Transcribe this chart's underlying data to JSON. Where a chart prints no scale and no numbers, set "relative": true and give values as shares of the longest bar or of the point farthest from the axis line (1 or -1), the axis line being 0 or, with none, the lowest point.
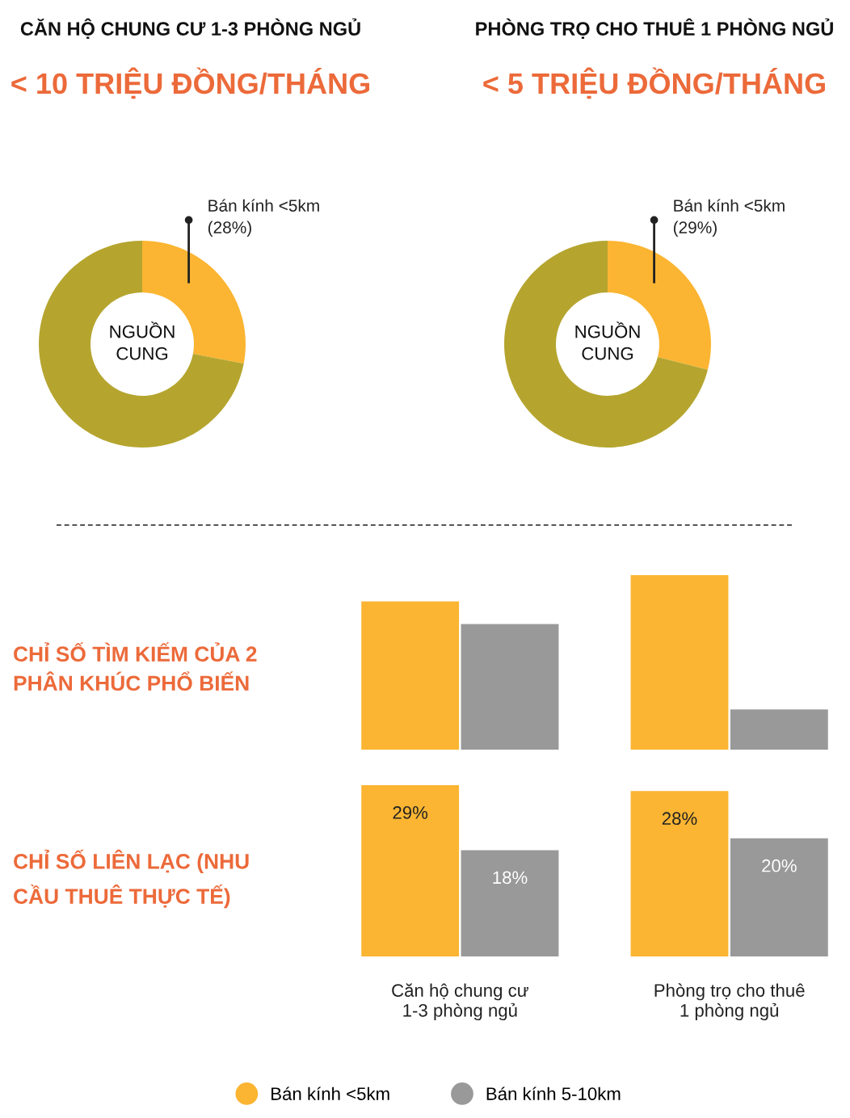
{
  "chart_data": [
    {
      "type": "donut",
      "title": "CĂN HỘ CHUNG CƯ 1-3 PHÒNG NGỦ",
      "subtitle": "< 10 TRIỆU ĐỒNG/THÁNG",
      "categories": [
        "Bán kính <5km",
        null
      ],
      "values": [
        28,
        72
      ],
      "colors": [
        "#fbb532",
        "#b5a52f"
      ],
      "value_labels": [
        "(28%)",
        null
      ],
      "annotations": [
        "NGUỒN\nCUNG"
      ]
    },
    {
      "type": "donut",
      "title": "PHÒNG TRỌ CHO THUÊ 1 PHÒNG NGỦ",
      "subtitle": "< 5 TRIỆU ĐỒNG/THÁNG",
      "categories": [
        "Bán kính <5km",
        null
      ],
      "values": [
        29,
        71
      ],
      "colors": [
        "#fbb532",
        "#b5a52f"
      ],
      "value_labels": [
        "(29%)",
        null
      ],
      "annotations": [
        "NGUỒN\nCUNG"
      ]
    },
    {
      "type": "bar",
      "ylabel": "CHỈ SỐ TÌM KIẾM CỦA 2\nPHÂN KHÚC PHỔ BIẾN",
      "relative": true,
      "categories": [
        null,
        null
      ],
      "legend": "bottom",
      "tick_labels": false,
      "series": [
        {
          "name": "Bán kính <5km",
          "color": "#fbb532",
          "values": [
            0.85,
            1
          ]
        },
        {
          "name": "Bán kính 5-10km",
          "color": "#999999",
          "values": [
            0.72,
            0.23
          ]
        }
      ]
    },
    {
      "type": "bar",
      "ylabel": "CHỈ SỐ LIÊN LẠC (NHU\nCẦU THUÊ THỰC TẾ)",
      "categories": [
        "Căn hộ chung cư\n1-3 phòng ngủ",
        "Phòng trọ cho thuê\n1 phòng ngủ"
      ],
      "tick_labels": "x",
      "series": [
        {
          "color": "#fbb532",
          "values": [
            29,
            28
          ],
          "value_labels": [
            "29%",
            "28%"
          ]
        },
        {
          "color": "#999999",
          "values": [
            18,
            20
          ],
          "value_labels": [
            "18%",
            "20%"
          ]
        }
      ]
    }
  ]
}
